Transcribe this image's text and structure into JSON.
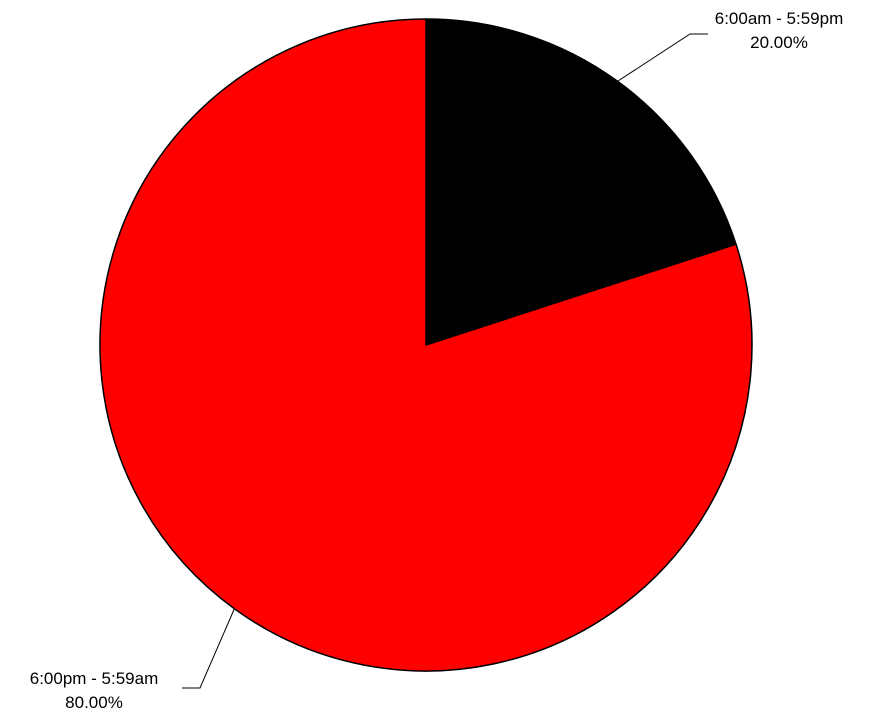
{
  "chart_data": {
    "type": "pie",
    "title": "",
    "slices": [
      {
        "label": "6:00am - 5:59pm",
        "value": 20.0,
        "percent_label": "20.00%",
        "color": "#000000"
      },
      {
        "label": "6:00pm - 5:59am",
        "value": 80.0,
        "percent_label": "80.00%",
        "color": "#ff0000"
      }
    ],
    "start_angle_deg": 0,
    "direction": "clockwise",
    "border_color": "#000000",
    "legend": "none"
  }
}
